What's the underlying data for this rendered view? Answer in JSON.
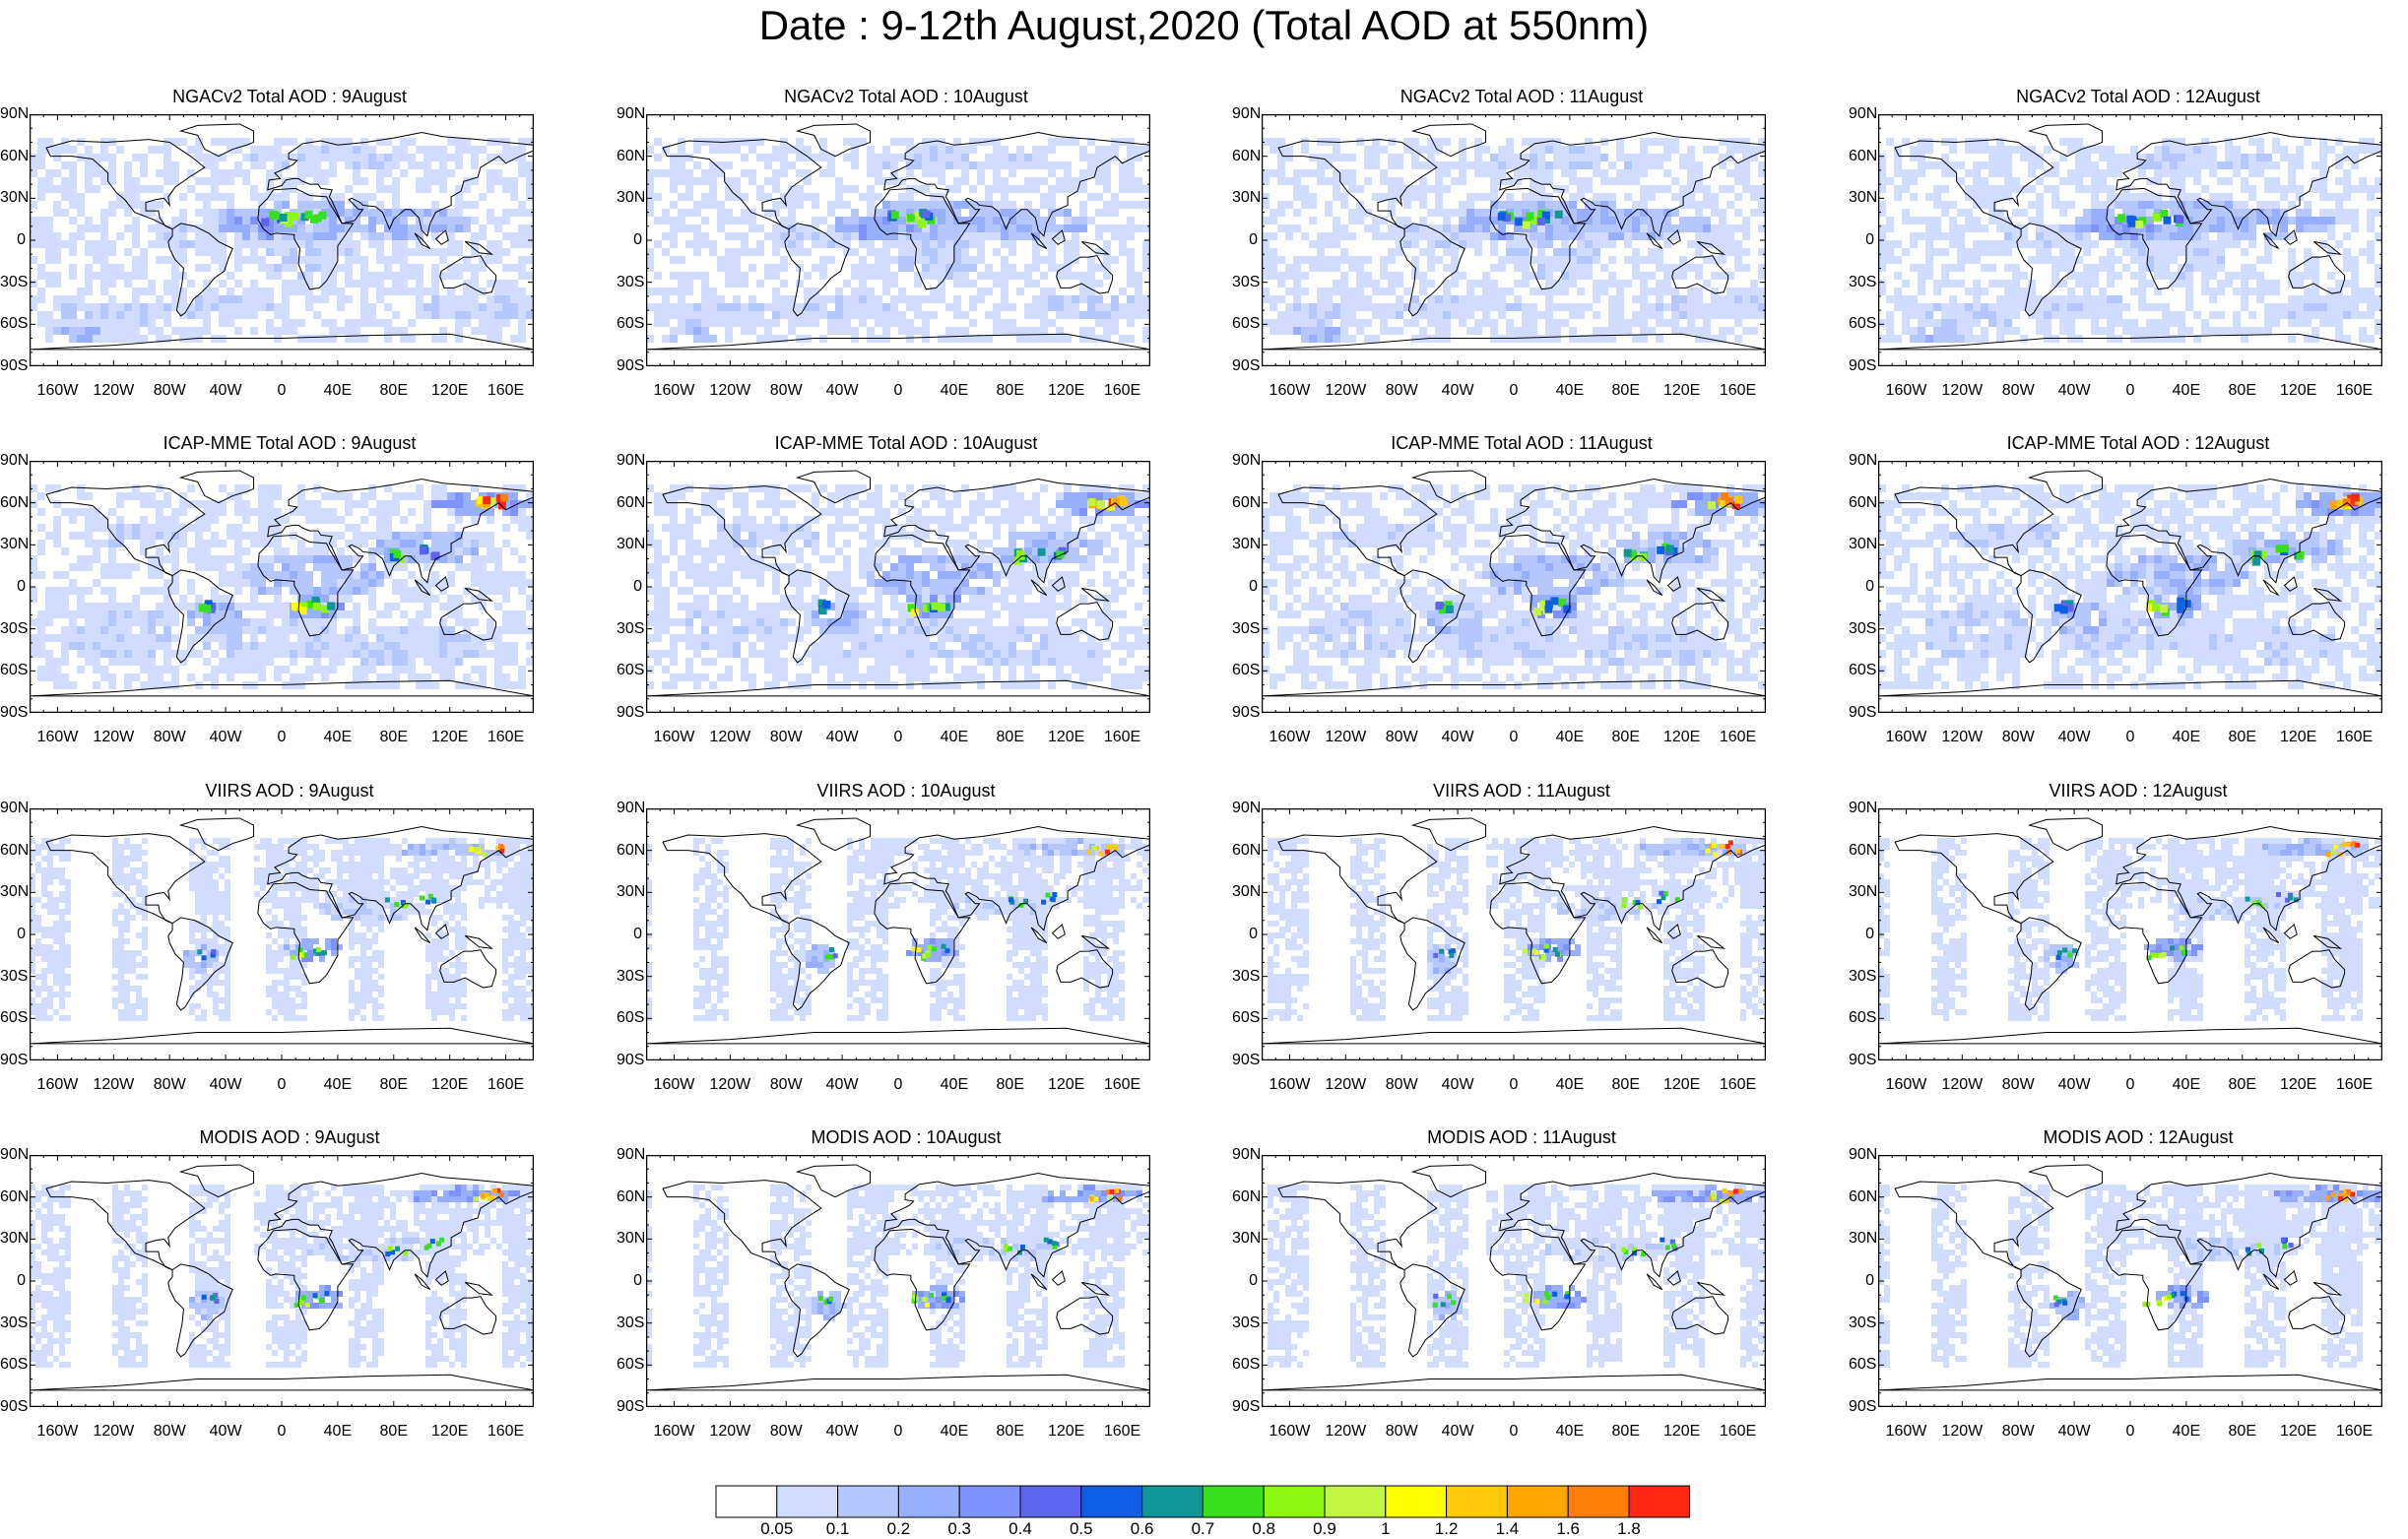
{
  "figure": {
    "title": "Date : 9-12th August,2020 (Total AOD at 550nm)"
  },
  "colors": {
    "land": "#ffffff",
    "coast": "#000000",
    "scale": [
      "#ffffff",
      "#d2dcff",
      "#b4c7ff",
      "#97afff",
      "#7e93ff",
      "#5d64f0",
      "#0f5ee6",
      "#0f9696",
      "#37e01a",
      "#8ef711",
      "#c4f542",
      "#ffff00",
      "#ffc80a",
      "#ffa500",
      "#ff7f0a",
      "#ff2815"
    ]
  },
  "colorbar": {
    "labels": [
      "0.05",
      "0.1",
      "0.2",
      "0.3",
      "0.4",
      "0.5",
      "0.6",
      "0.7",
      "0.8",
      "0.9",
      "1",
      "1.2",
      "1.4",
      "1.6",
      "1.8"
    ]
  },
  "axes": {
    "lat_labels": [
      "90N",
      "60N",
      "30N",
      "0",
      "30S",
      "60S",
      "90S"
    ],
    "lon_labels": [
      "160W",
      "120W",
      "80W",
      "40W",
      "0",
      "40E",
      "80E",
      "120E",
      "160E"
    ]
  },
  "rows": [
    {
      "dataset": "NGACv2",
      "panels": [
        {
          "title": "NGACv2 Total AOD : 9August"
        },
        {
          "title": "NGACv2 Total AOD : 10August"
        },
        {
          "title": "NGACv2 Total AOD : 11August"
        },
        {
          "title": "NGACv2 Total AOD : 12August"
        }
      ]
    },
    {
      "dataset": "ICAP-MME",
      "panels": [
        {
          "title": "ICAP-MME Total AOD : 9August"
        },
        {
          "title": "ICAP-MME Total AOD : 10August"
        },
        {
          "title": "ICAP-MME Total AOD : 11August"
        },
        {
          "title": "ICAP-MME Total AOD : 12August"
        }
      ]
    },
    {
      "dataset": "VIIRS",
      "panels": [
        {
          "title": "VIIRS AOD : 9August"
        },
        {
          "title": "VIIRS AOD : 10August"
        },
        {
          "title": "VIIRS AOD : 11August"
        },
        {
          "title": "VIIRS AOD : 12August"
        }
      ]
    },
    {
      "dataset": "MODIS",
      "panels": [
        {
          "title": "MODIS AOD : 9August"
        },
        {
          "title": "MODIS AOD : 10August"
        },
        {
          "title": "MODIS AOD : 11August"
        },
        {
          "title": "MODIS AOD : 12August"
        }
      ]
    }
  ]
}
